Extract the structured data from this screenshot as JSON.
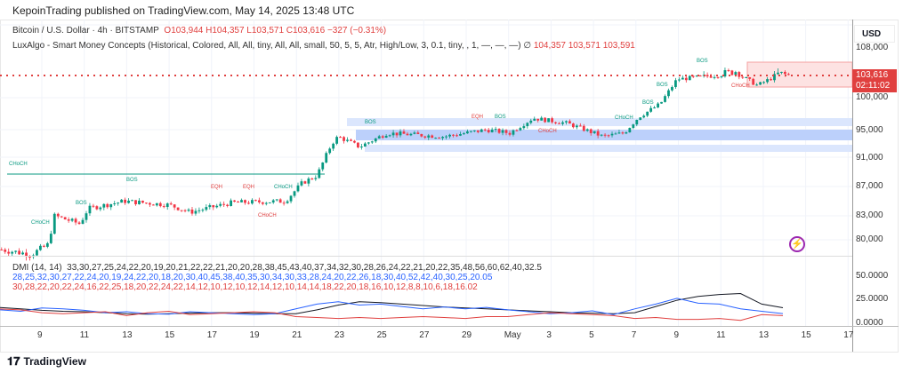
{
  "header": {
    "published": "KepoinTrading published on TradingView.com, May 14, 2025 13:48 UTC"
  },
  "legend": {
    "symbol": "Bitcoin / U.S. Dollar · 4h · BITSTAMP",
    "o": "O103,944",
    "h": "H104,357",
    "l": "L103,571",
    "c": "C103,616",
    "chg": "−327 (−0.31%)",
    "indicator": "LuxAlgo - Smart Money Concepts (Historical, Colored, All, All, tiny, All, All, small, 50, 5, 5, Atr, High/Low, 3, 0.1, tiny, , 1, —, —, —)",
    "ind_vals": [
      "∅",
      "104,357",
      "103,571",
      "103,591"
    ]
  },
  "price_axis": {
    "currency": "USD",
    "ticks": [
      "108,000",
      "100,000",
      "95,000",
      "91,000",
      "87,000",
      "83,000",
      "80,000"
    ],
    "last_price": "103,616",
    "countdown": "02:11:02"
  },
  "dmi": {
    "title": "DMI (14, 14)",
    "adx": [
      33,
      30,
      27,
      25,
      24,
      22,
      20,
      19,
      20,
      21,
      22,
      22,
      21,
      20,
      20,
      28,
      38,
      45,
      43,
      40,
      37,
      34,
      32,
      30,
      28,
      26,
      24,
      22,
      21,
      20,
      22,
      35,
      48,
      56,
      60,
      62,
      40,
      32.5
    ],
    "plus": [
      28,
      25,
      32,
      30,
      27,
      22,
      24,
      20,
      19,
      24,
      22,
      20,
      18,
      20,
      30,
      40,
      45,
      38,
      40,
      35,
      30,
      34,
      30,
      33,
      28,
      24,
      20,
      22,
      26,
      18,
      30,
      40,
      52,
      42,
      40,
      30,
      25,
      20.05
    ],
    "minus": [
      30,
      28,
      22,
      20,
      22,
      24,
      16,
      22,
      25,
      18,
      20,
      22,
      24,
      22,
      14,
      12,
      10,
      12,
      10,
      12,
      14,
      12,
      10,
      14,
      14,
      18,
      22,
      20,
      18,
      16,
      10,
      12,
      8,
      8,
      10,
      6,
      18,
      16.02
    ],
    "ticks": [
      "50.0000",
      "25.0000",
      "0.0000"
    ],
    "colors": {
      "adx": "#131722",
      "plus": "#2962ff",
      "minus": "#e0403f"
    },
    "days": [
      7,
      8,
      9,
      10,
      11,
      12,
      13,
      14,
      15,
      16,
      17,
      18,
      19,
      20,
      21,
      22,
      23,
      24,
      25,
      26,
      27,
      28,
      29,
      30,
      31,
      32,
      33,
      34,
      35,
      36,
      37,
      38,
      39,
      40,
      41,
      42,
      43,
      44
    ]
  },
  "chart_data": {
    "type": "candlestick",
    "title": "Bitcoin / U.S. Dollar 4h",
    "x_tick_labels": [
      "9",
      "11",
      "13",
      "15",
      "17",
      "19",
      "21",
      "23",
      "25",
      "27",
      "29",
      "May",
      "3",
      "5",
      "7",
      "9",
      "11",
      "13",
      "15",
      "17"
    ],
    "waypoints_day": [
      7.1,
      8.5,
      9.3,
      9.6,
      10.8,
      11.2,
      12.9,
      15,
      16,
      18,
      20.5,
      21.3,
      22,
      22.7,
      23,
      24,
      25.3,
      28,
      30,
      31.1,
      32.2,
      33.8,
      35.5,
      36.5,
      37.2,
      38.2,
      39,
      40.5,
      41.8,
      42.8,
      43.8,
      44.3
    ],
    "waypoints_price": [
      79000,
      78500,
      79500,
      83000,
      82000,
      84000,
      85000,
      84500,
      83500,
      84800,
      85000,
      87500,
      88500,
      93000,
      94000,
      92500,
      94500,
      94000,
      95000,
      94500,
      96800,
      96000,
      94000,
      94500,
      97000,
      99000,
      103000,
      103500,
      104000,
      102000,
      103800,
      103616
    ],
    "ylim": [
      78000,
      109000
    ],
    "colors": {
      "up": "#089981",
      "down": "#f23645"
    }
  },
  "smc_labels": [
    "CHoCH",
    "CHoCH",
    "BOS",
    "BOS",
    "EQH",
    "EQH",
    "CHoCH",
    "CHoCH",
    "BOS",
    "EQH",
    "BOS",
    "CHoCH",
    "CHoCH",
    "BOS",
    "BOS",
    "BOS",
    "CHoCH"
  ],
  "footer": {
    "brand": "TradingView"
  }
}
